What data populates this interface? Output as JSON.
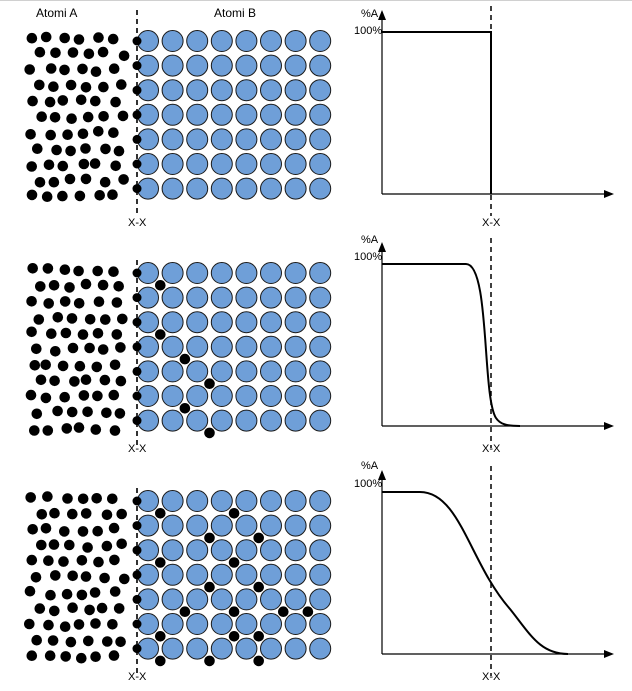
{
  "header": {
    "atoms_a_label": "Atomi A",
    "atoms_b_label": "Atomi B"
  },
  "colors": {
    "atom_a": "#000000",
    "atom_b": "#6f9fd8",
    "atom_b_stroke": "#1a1a1a",
    "line": "#000000"
  },
  "panels": [
    {
      "interface_label": "X-X",
      "y_axis_label": "%A",
      "max_label": "100%",
      "profile": "step",
      "diffused_b_positions": []
    },
    {
      "interface_label": "X-X",
      "y_axis_label": "%A",
      "max_label": "100%",
      "profile": "steep",
      "diffused_b_positions": [
        [
          0,
          0
        ],
        [
          0,
          2
        ],
        [
          1,
          3
        ],
        [
          2,
          4
        ],
        [
          1,
          5
        ],
        [
          2,
          6
        ]
      ]
    },
    {
      "interface_label": "X-X",
      "y_axis_label": "%A",
      "max_label": "100%",
      "profile": "gradual",
      "diffused_b_positions": [
        [
          0,
          0
        ],
        [
          3,
          0
        ],
        [
          2,
          1
        ],
        [
          4,
          1
        ],
        [
          0,
          2
        ],
        [
          3,
          2
        ],
        [
          4,
          3
        ],
        [
          2,
          3
        ],
        [
          1,
          4
        ],
        [
          3,
          4
        ],
        [
          5,
          4
        ],
        [
          6,
          4
        ],
        [
          0,
          5
        ],
        [
          3,
          5
        ],
        [
          4,
          6
        ],
        [
          0,
          6
        ],
        [
          2,
          6
        ],
        [
          4,
          5
        ]
      ]
    }
  ]
}
